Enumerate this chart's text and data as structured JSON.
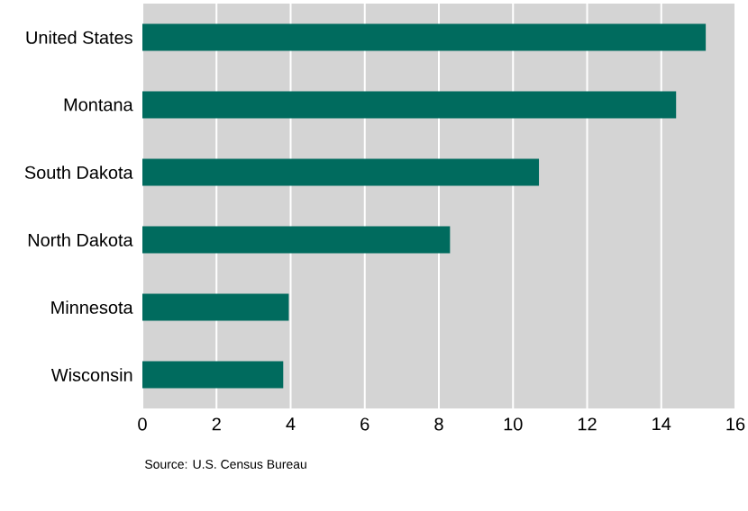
{
  "chart_data": {
    "type": "bar",
    "orientation": "horizontal",
    "categories": [
      "United States",
      "Montana",
      "South Dakota",
      "North Dakota",
      "Minnesota",
      "Wisconsin"
    ],
    "values": [
      15.2,
      14.4,
      10.7,
      8.3,
      3.95,
      3.8
    ],
    "color": "#006b5e",
    "xlim": [
      0,
      16
    ],
    "xticks": [
      0,
      2,
      4,
      6,
      8,
      10,
      12,
      14,
      16
    ],
    "grid": "x",
    "annotations": [
      "Source: U.S. Census Bureau"
    ]
  }
}
